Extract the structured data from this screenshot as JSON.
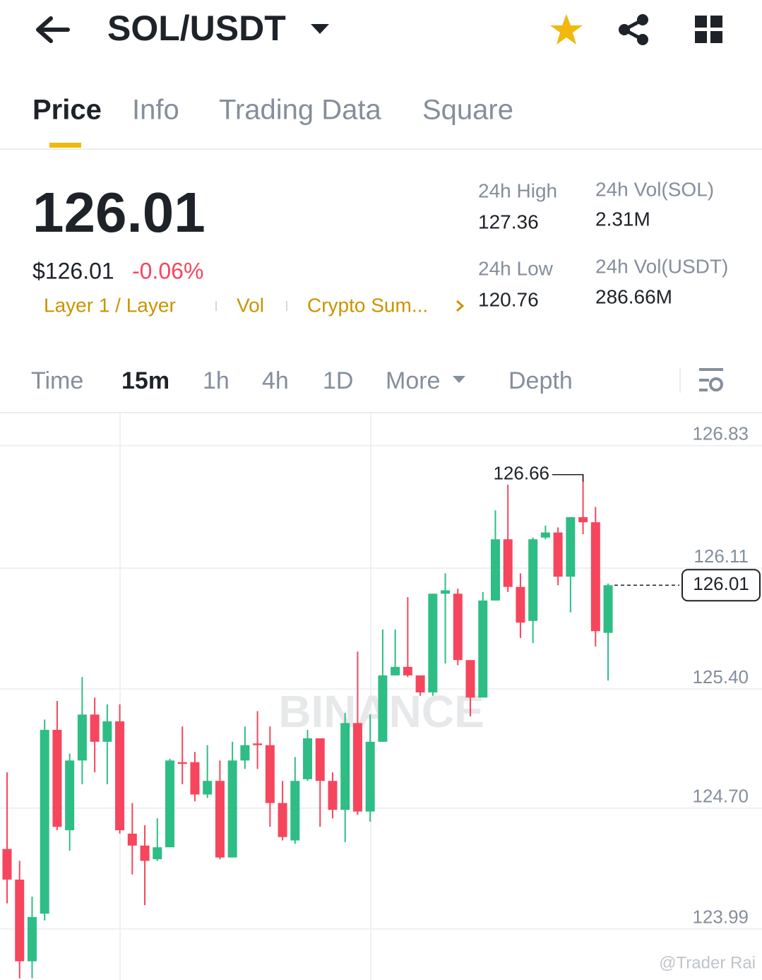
{
  "header": {
    "pair": "SOL/USDT"
  },
  "tabs": [
    "Price",
    "Info",
    "Trading Data",
    "Square"
  ],
  "summary": {
    "price": "126.01",
    "usd_price": "$126.01",
    "change": "-0.06%",
    "tags": [
      "Layer 1 / Layer",
      "Vol",
      "Crypto Sum..."
    ],
    "stats": [
      {
        "label": "24h High",
        "value": "127.36"
      },
      {
        "label": "24h Vol(SOL)",
        "value": "2.31M"
      },
      {
        "label": "24h Low",
        "value": "120.76"
      },
      {
        "label": "24h Vol(USDT)",
        "value": "286.66M"
      }
    ]
  },
  "intervals": [
    "Time",
    "15m",
    "1h",
    "4h",
    "1D",
    "More",
    "Depth"
  ],
  "watermark": "BINANCE",
  "credit": "@Trader Rai",
  "chart_data": {
    "type": "candlestick",
    "up_color": "#2ebd85",
    "down_color": "#f6465d",
    "grid": true,
    "ylim": [
      123.69,
      127.02
    ],
    "yticks": [
      126.83,
      126.11,
      {
        "value": 125.4,
        "label": "125.40"
      },
      {
        "value": 124.7,
        "label": "124.70"
      },
      123.99
    ],
    "last_price": 126.01,
    "high_label": 126.66,
    "open": [
      124.46,
      124.28,
      123.8,
      124.08,
      125.16,
      124.57,
      124.98,
      125.25,
      125.09,
      125.21,
      124.55,
      124.48,
      124.4,
      124.47,
      124.97,
      124.97,
      124.78,
      124.86,
      124.41,
      124.98,
      125.08,
      125.07,
      124.73,
      124.51,
      124.87,
      125.11,
      124.86,
      124.69,
      125.2,
      124.68,
      125.09,
      125.48,
      125.53,
      125.48,
      125.38,
      125.96,
      125.96,
      125.57,
      125.35,
      125.92,
      126.28,
      126.0,
      125.8,
      126.29,
      126.32,
      126.06,
      126.41,
      126.38,
      125.73
    ],
    "high": [
      124.91,
      124.39,
      124.18,
      125.22,
      125.33,
      125.02,
      125.47,
      125.35,
      125.31,
      125.31,
      124.73,
      124.6,
      124.64,
      124.99,
      125.18,
      125.03,
      125.07,
      124.98,
      125.09,
      125.18,
      125.27,
      125.18,
      124.86,
      125.0,
      125.16,
      125.11,
      124.91,
      125.26,
      125.62,
      125.25,
      125.75,
      125.75,
      125.94,
      125.48,
      125.96,
      126.08,
      125.99,
      125.57,
      125.97,
      126.45,
      126.6,
      126.08,
      126.29,
      126.36,
      126.35,
      126.41,
      126.66,
      126.47,
      126.02
    ],
    "low": [
      124.14,
      123.7,
      123.7,
      124.04,
      124.57,
      124.45,
      124.84,
      124.91,
      124.84,
      124.55,
      124.31,
      124.13,
      124.39,
      124.47,
      124.84,
      124.74,
      124.76,
      124.4,
      124.41,
      124.93,
      124.93,
      124.59,
      124.51,
      124.49,
      124.86,
      124.59,
      124.64,
      124.5,
      124.66,
      124.62,
      125.09,
      125.48,
      125.47,
      125.36,
      125.36,
      125.55,
      125.54,
      125.24,
      125.35,
      125.92,
      125.97,
      125.7,
      125.67,
      126.28,
      126.01,
      125.85,
      126.31,
      125.65,
      125.45
    ],
    "close": [
      124.28,
      123.8,
      124.06,
      125.16,
      124.59,
      124.98,
      125.25,
      125.09,
      125.21,
      124.57,
      124.48,
      124.39,
      124.47,
      124.98,
      124.96,
      124.78,
      124.86,
      124.41,
      124.98,
      125.07,
      125.07,
      124.73,
      124.53,
      124.86,
      125.11,
      124.86,
      124.69,
      125.2,
      124.68,
      125.09,
      125.48,
      125.53,
      125.48,
      125.38,
      125.96,
      125.98,
      125.57,
      125.35,
      125.92,
      126.28,
      126.0,
      125.79,
      126.28,
      126.32,
      126.06,
      126.41,
      126.38,
      125.74,
      126.01
    ]
  }
}
